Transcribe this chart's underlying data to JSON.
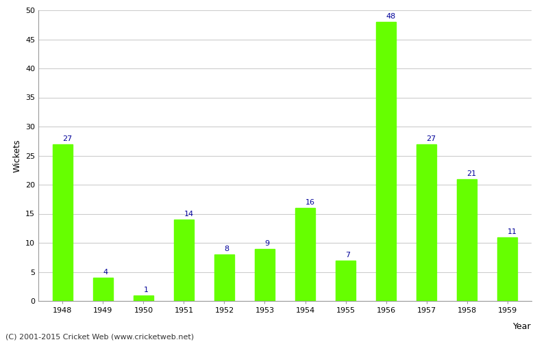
{
  "years": [
    "1948",
    "1949",
    "1950",
    "1951",
    "1952",
    "1953",
    "1954",
    "1955",
    "1956",
    "1957",
    "1958",
    "1959"
  ],
  "wickets": [
    27,
    4,
    1,
    14,
    8,
    9,
    16,
    7,
    48,
    27,
    21,
    11
  ],
  "bar_color": "#66ff00",
  "label_color": "#000099",
  "xlabel": "Year",
  "ylabel": "Wickets",
  "ylim": [
    0,
    50
  ],
  "yticks": [
    0,
    5,
    10,
    15,
    20,
    25,
    30,
    35,
    40,
    45,
    50
  ],
  "background_color": "#ffffff",
  "grid_color": "#cccccc",
  "footnote": "(C) 2001-2015 Cricket Web (www.cricketweb.net)",
  "label_fontsize": 8,
  "axis_label_fontsize": 9,
  "tick_fontsize": 8,
  "footnote_fontsize": 8,
  "bar_width": 0.5
}
